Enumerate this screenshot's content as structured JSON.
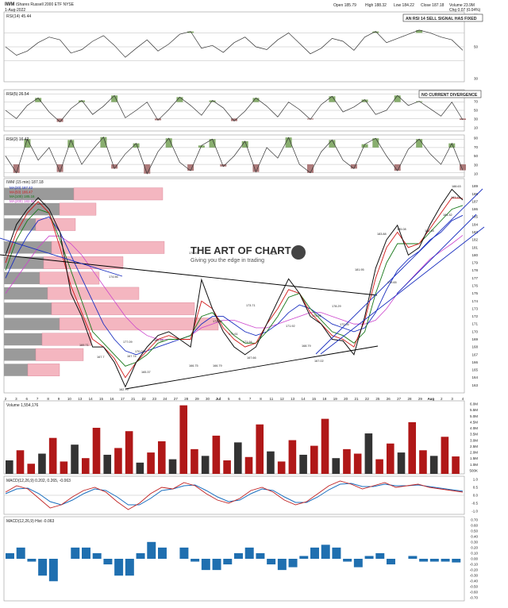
{
  "header": {
    "symbol": "IWM",
    "name": "iShares Russell 2000 ETF  NYSE",
    "date": "1-Aug-2022",
    "open_label": "Open",
    "open": "185.79",
    "high_label": "High",
    "high": "188.32",
    "low_label": "Low",
    "low": "184.22",
    "close_label": "Close",
    "close": "187.18",
    "volume_label": "Volume",
    "volume": "23.9M",
    "chg_label": "Chg",
    "chg": "0.07 (0.04%)"
  },
  "panels": {
    "rsi14": {
      "label": "RSI(14) 45.44",
      "annotation": "AN RSI 14 SELL SIGNAL HAS FIXED",
      "ticks": [
        "70",
        "50",
        "30"
      ]
    },
    "rsi5": {
      "label": "RSI(5) 26.54",
      "annotation": "NO CURRENT DIVERGENCE",
      "ticks": [
        "90",
        "70",
        "50",
        "30",
        "10"
      ]
    },
    "rsi2": {
      "label": "RSI(2) 16.42",
      "ticks": [
        "90",
        "70",
        "50",
        "30",
        "10"
      ]
    },
    "price": {
      "title": "IWM (15 min) 187.18",
      "legend": [
        "MA(20) 187.42",
        "MA(50) 186.47",
        "MA(100) 185.16",
        "MA(200) 182.56",
        "BUT (no data)"
      ],
      "legend_colors": [
        "#1a2fbf",
        "#d01818",
        "#18781a",
        "#cc44cc",
        "#999999"
      ],
      "watermark_title": "THE ART OF CHART",
      "watermark_sub": "Giving you the edge in trading",
      "y_ticks": [
        "189",
        "188",
        "187",
        "186",
        "185",
        "184",
        "183",
        "182",
        "181",
        "180",
        "179",
        "178",
        "177",
        "176",
        "175",
        "174",
        "173",
        "172",
        "171",
        "170",
        "169",
        "168",
        "167",
        "166",
        "165",
        "164",
        "163"
      ]
    },
    "volume": {
      "label": "Volume 1,554,176",
      "ticks": [
        "6.0M",
        "5.5M",
        "5.0M",
        "4.5M",
        "4.0M",
        "3.5M",
        "3.0M",
        "2.5M",
        "2.0M",
        "1.5M",
        "1.0M",
        "500K"
      ]
    },
    "macd": {
      "label": "MACD(12,26,9) 0.202, 0.265, -0.063",
      "ticks": [
        "1.0",
        "0.5",
        "0.0",
        "-0.5",
        "-1.0"
      ]
    },
    "macd_hist": {
      "label": "MACD(12,26,9) Hist -0.063",
      "ticks": [
        "0.70",
        "0.60",
        "0.50",
        "0.40",
        "0.30",
        "0.20",
        "0.10",
        "0.00",
        "-0.10",
        "-0.20",
        "-0.30",
        "-0.40",
        "-0.50",
        "-0.60",
        "-0.70"
      ]
    }
  },
  "x_axis": [
    "2",
    "3",
    "6",
    "7",
    "8",
    "9",
    "10",
    "13",
    "14",
    "15",
    "16",
    "17",
    "21",
    "22",
    "23",
    "24",
    "27",
    "28",
    "29",
    "30",
    "Jul",
    "5",
    "6",
    "7",
    "8",
    "11",
    "12",
    "13",
    "14",
    "15",
    "18",
    "19",
    "20",
    "21",
    "22",
    "25",
    "26",
    "27",
    "28",
    "29",
    "Aug",
    "2",
    "3",
    "4"
  ],
  "price_labels": [
    "185.41",
    "174.56",
    "177.09",
    "169.71",
    "167.7",
    "170.08",
    "167.74",
    "165.37",
    "162.79",
    "169.28",
    "176.83",
    "171.61",
    "171.94",
    "166.75",
    "167.66",
    "166.79",
    "176.91",
    "173.71",
    "174.95",
    "171.92",
    "168.79",
    "167.02",
    "178.29",
    "181.95",
    "183.88",
    "185.08",
    "179.65",
    "186.48",
    "187.79",
    "188.63",
    "184.32",
    "173.30",
    "172.05"
  ],
  "chart_data": {
    "type": "line",
    "title": "IWM (15 min) 187.18",
    "x_range": [
      "2-Jun-2022",
      "1-Aug-2022"
    ],
    "ylim": [
      162,
      190
    ],
    "series": [
      {
        "name": "IWM",
        "values": [
          180,
          184,
          186,
          187.5,
          186,
          183,
          175,
          172,
          168,
          168,
          166,
          162.8,
          166,
          168,
          169.5,
          170,
          169,
          168,
          176.8,
          173,
          170,
          168,
          167,
          168,
          171,
          174,
          176.9,
          175,
          172,
          171,
          169,
          168.8,
          167,
          172,
          178.3,
          182,
          183.9,
          180,
          181,
          184,
          186.5,
          188.6,
          187.2
        ]
      },
      {
        "name": "MA(20) 187.42",
        "values": [
          179,
          183,
          185.5,
          187,
          185.5,
          181,
          176,
          172.5,
          169,
          168,
          166.5,
          164,
          166,
          167.5,
          169,
          169.5,
          169,
          169,
          174,
          173,
          170.5,
          169,
          168,
          168.5,
          171,
          173,
          175.5,
          175,
          172.5,
          171,
          169.5,
          169,
          168,
          171.5,
          177,
          181,
          183,
          181,
          181.5,
          183.5,
          185.5,
          187.5,
          187.4
        ]
      },
      {
        "name": "MA(50) 186.47",
        "values": [
          178,
          182,
          184.5,
          186,
          185.5,
          182,
          178,
          174,
          170,
          168.5,
          167,
          165.5,
          166,
          167,
          168.5,
          169,
          169,
          169.5,
          172,
          172.5,
          171,
          169.5,
          168.5,
          168.5,
          170,
          172,
          174.5,
          175,
          173,
          171.5,
          170,
          169.5,
          168.5,
          170,
          175,
          179,
          181.5,
          181.5,
          181.5,
          183,
          184.5,
          186,
          186.5
        ]
      },
      {
        "name": "MA(100) 185.16",
        "values": [
          177,
          180,
          182.5,
          184.5,
          185,
          183,
          180,
          177,
          174,
          171,
          169,
          167.5,
          167,
          167.5,
          168,
          168.5,
          169,
          169.5,
          171,
          172,
          172,
          171,
          170,
          169.5,
          170,
          171,
          172.5,
          173.5,
          173,
          172,
          171,
          170.5,
          170,
          170.5,
          172.5,
          175.5,
          178,
          179.5,
          180.5,
          182,
          183,
          184.5,
          185.2
        ]
      },
      {
        "name": "MA(200) 182.56",
        "values": [
          175,
          177,
          179,
          181,
          182.5,
          182.5,
          181.5,
          180,
          178,
          176,
          174,
          172,
          170.5,
          169.5,
          169,
          169,
          169,
          169.5,
          170.5,
          171,
          171.5,
          171.5,
          171,
          170.5,
          170.5,
          171,
          171.5,
          172,
          172.5,
          172.5,
          172,
          171.5,
          171,
          171,
          171.5,
          173,
          175,
          176.5,
          178,
          179.5,
          180.5,
          181.5,
          182.6
        ]
      }
    ],
    "rsi14": [
      50,
      38,
      44,
      56,
      64,
      60,
      41,
      46,
      58,
      66,
      52,
      35,
      48,
      60,
      44,
      54,
      68,
      72,
      48,
      52,
      42,
      56,
      64,
      50,
      46,
      60,
      70,
      55,
      40,
      48,
      62,
      58,
      45,
      64,
      72,
      56,
      62,
      68,
      74,
      70,
      64,
      60,
      45
    ],
    "rsi5": [
      50,
      30,
      62,
      80,
      46,
      22,
      54,
      74,
      40,
      60,
      86,
      32,
      50,
      70,
      26,
      52,
      82,
      62,
      38,
      74,
      56,
      24,
      48,
      80,
      60,
      34,
      70,
      52,
      28,
      64,
      84,
      46,
      58,
      76,
      40,
      50,
      86,
      62,
      72,
      54,
      36,
      70,
      27
    ],
    "rsi2": [
      50,
      10,
      90,
      40,
      70,
      12,
      88,
      30,
      65,
      95,
      20,
      55,
      80,
      8,
      60,
      92,
      35,
      15,
      75,
      90,
      25,
      50,
      85,
      12,
      70,
      45,
      94,
      30,
      10,
      60,
      88,
      40,
      20,
      78,
      92,
      50,
      15,
      66,
      90,
      55,
      30,
      80,
      16
    ],
    "macd": [
      0.2,
      0.6,
      0.4,
      -0.2,
      -0.8,
      -0.6,
      -0.1,
      0.3,
      0.5,
      0.2,
      -0.4,
      -0.9,
      -0.5,
      0.1,
      0.5,
      0.4,
      0.8,
      0.6,
      0.1,
      -0.3,
      -0.5,
      -0.2,
      0.3,
      0.5,
      0.2,
      -0.3,
      -0.6,
      -0.4,
      0.1,
      0.6,
      0.9,
      0.7,
      0.4,
      0.6,
      0.8,
      0.5,
      0.6,
      0.7,
      0.5,
      0.4,
      0.3,
      0.2
    ],
    "macd_signal": [
      0.1,
      0.4,
      0.45,
      0.1,
      -0.4,
      -0.6,
      -0.3,
      0.1,
      0.4,
      0.3,
      -0.1,
      -0.6,
      -0.6,
      -0.2,
      0.3,
      0.4,
      0.6,
      0.65,
      0.3,
      -0.1,
      -0.4,
      -0.3,
      0.1,
      0.4,
      0.3,
      -0.1,
      -0.45,
      -0.45,
      -0.1,
      0.35,
      0.7,
      0.75,
      0.55,
      0.55,
      0.7,
      0.6,
      0.6,
      0.65,
      0.55,
      0.45,
      0.35,
      0.265
    ],
    "volume_bars": [
      1.2,
      2.1,
      0.9,
      1.8,
      3.2,
      1.1,
      2.6,
      1.4,
      4.1,
      1.7,
      2.3,
      3.8,
      1.0,
      1.9,
      2.9,
      1.3,
      6.1,
      2.2,
      1.6,
      3.4,
      1.2,
      2.8,
      1.5,
      4.4,
      2.0,
      1.1,
      3.0,
      1.7,
      2.5,
      4.9,
      1.4,
      2.2,
      1.8,
      3.6,
      1.3,
      2.7,
      1.9,
      4.6,
      2.1,
      1.6,
      3.3,
      1.55
    ]
  }
}
